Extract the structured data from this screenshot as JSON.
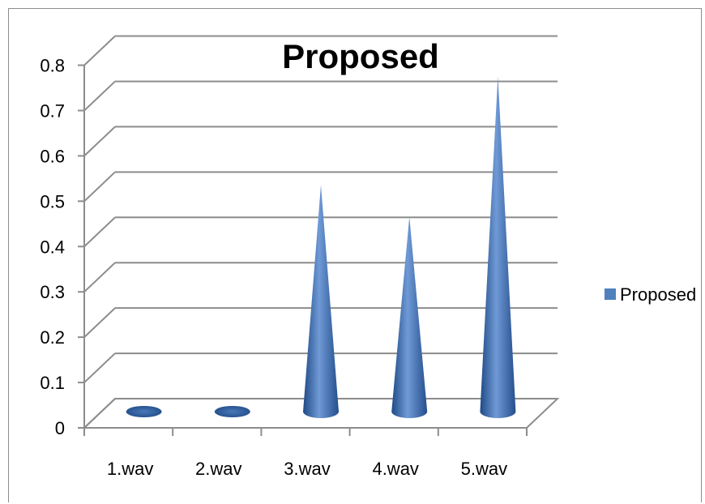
{
  "chart_data": {
    "type": "bar",
    "title": "Proposed",
    "categories": [
      "1.wav",
      "2.wav",
      "3.wav",
      "4.wav",
      "5.wav"
    ],
    "series": [
      {
        "name": "Proposed",
        "values": [
          0,
          0,
          0.5,
          0.43,
          0.74
        ]
      }
    ],
    "ylim": [
      0,
      0.8
    ],
    "yticks": [
      "0",
      "0.1",
      "0.2",
      "0.3",
      "0.4",
      "0.5",
      "0.6",
      "0.7",
      "0.8"
    ],
    "grid": true,
    "legend": "right",
    "bar_shape": "3d-cone",
    "colors": {
      "series": "#4f81bd",
      "grid": "#8c8c8c",
      "axis": "#8c8c8c"
    }
  }
}
